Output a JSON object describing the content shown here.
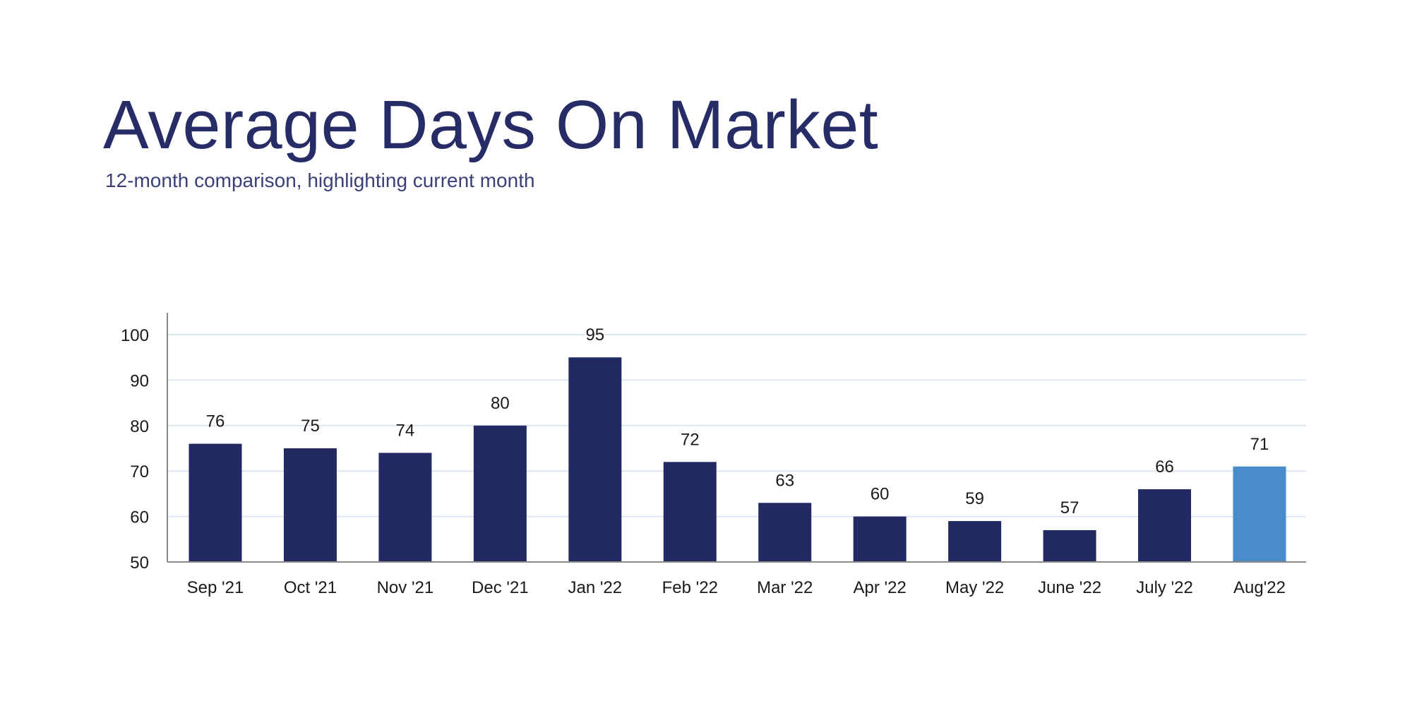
{
  "header": {
    "title": "Average Days On Market",
    "subtitle": "12-month comparison, highlighting current month"
  },
  "chart_data": {
    "type": "bar",
    "title": "Average Days On Market",
    "subtitle": "12-month comparison, highlighting current month",
    "xlabel": "",
    "ylabel": "",
    "categories": [
      "Sep '21",
      "Oct '21",
      "Nov '21",
      "Dec '21",
      "Jan '22",
      "Feb '22",
      "Mar '22",
      "Apr '22",
      "May '22",
      "June '22",
      "July '22",
      "Aug'22"
    ],
    "values": [
      76,
      75,
      74,
      80,
      95,
      72,
      63,
      60,
      59,
      57,
      66,
      71
    ],
    "ylim": [
      50,
      105
    ],
    "yticks": [
      50,
      60,
      70,
      80,
      90,
      100
    ],
    "grid": true,
    "data_labels": true,
    "highlight_index": 11,
    "colors": {
      "bar": "#232a63",
      "highlight": "#4a8cca",
      "grid": "#dde5ef",
      "axis": "#8a8a8a",
      "text": "#262c66"
    }
  }
}
